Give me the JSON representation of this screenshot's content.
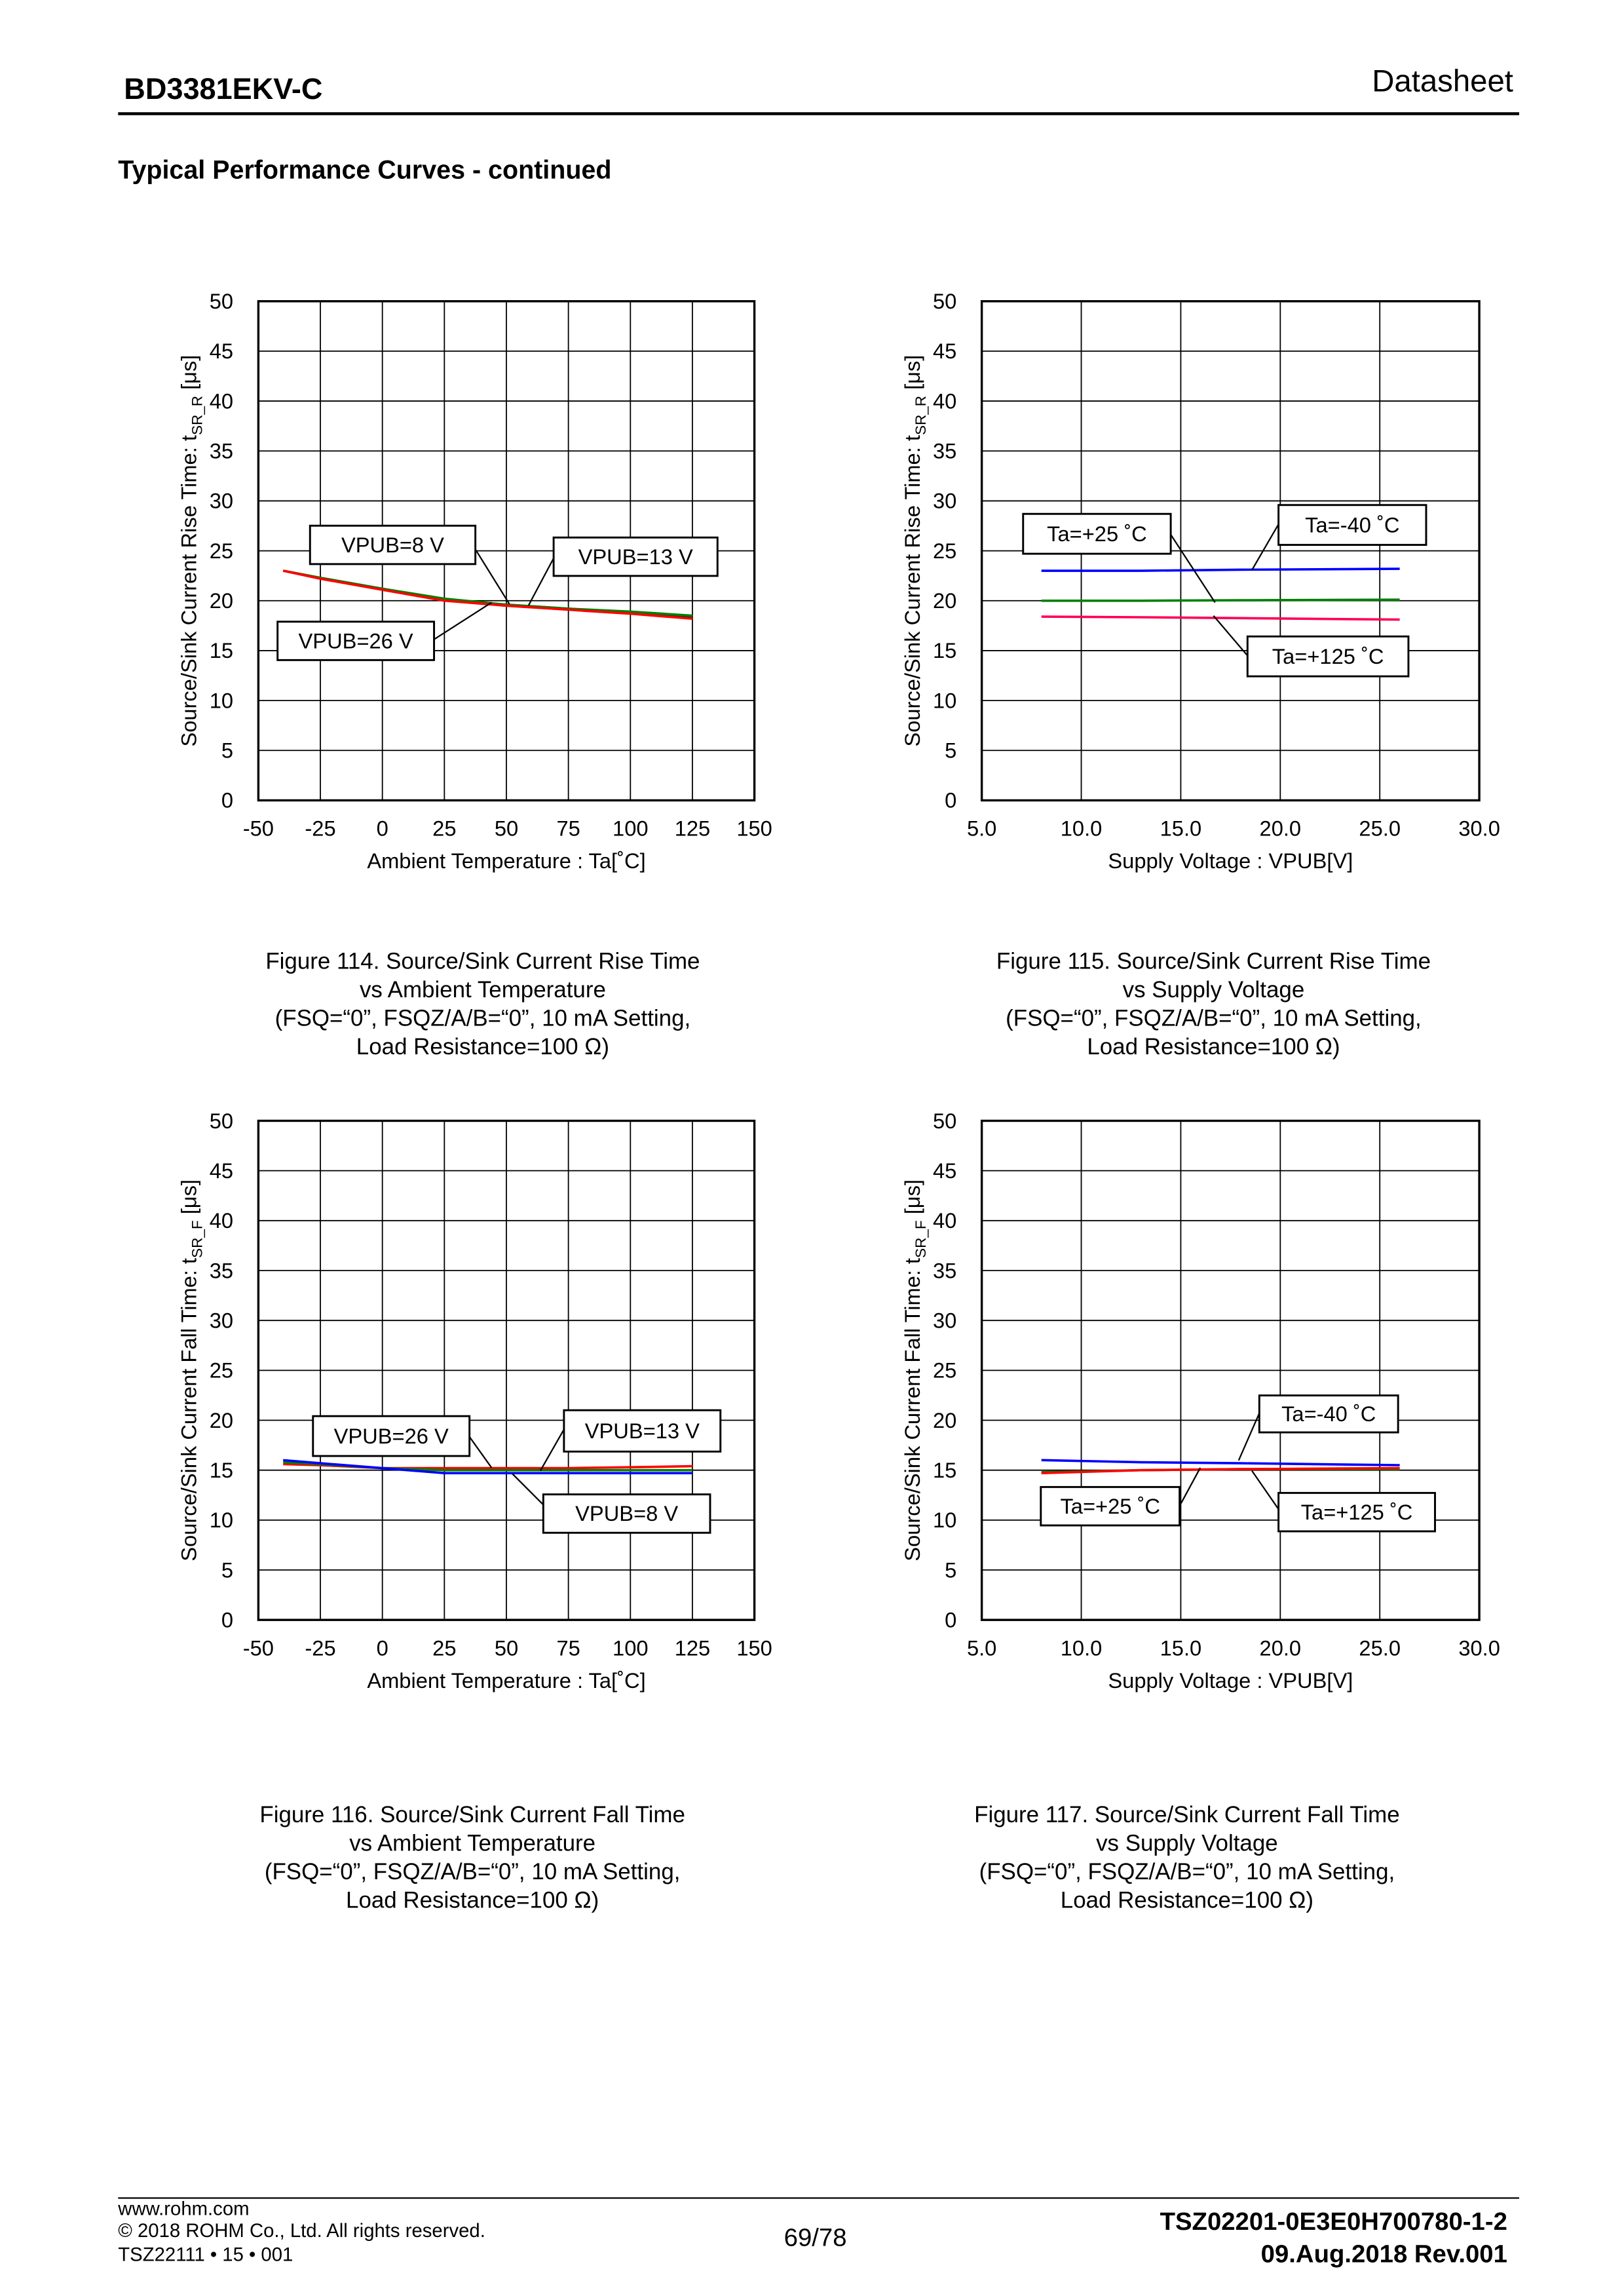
{
  "header": {
    "doc_title": "BD3381EKV-C",
    "doc_type": "Datasheet"
  },
  "section_title": "Typical Performance Curves - continued",
  "footer": {
    "website": "www.rohm.com",
    "copyright": "© 2018 ROHM Co., Ltd. All rights reserved.",
    "form_code": "TSZ22111 • 15 • 001",
    "page": "69/78",
    "doc_number": "TSZ02201-0E3E0H700780-1-2",
    "date_rev": "09.Aug.2018 Rev.001"
  },
  "chart_data": [
    {
      "type": "line",
      "caption": [
        "Figure 114. Source/Sink Current Rise Time",
        "vs Ambient Temperature",
        "(FSQ=“0”, FSQZ/A/B=“0”, 10 mA Setting,",
        "Load Resistance=100 Ω)"
      ],
      "xlabel": "Ambient Temperature : Ta[˚C]",
      "ylabel": {
        "prefix": "Source/Sink Current Rise Time: t",
        "sub": "SR_R",
        "suffix": " [μs]"
      },
      "xlim": [
        -50,
        150
      ],
      "ylim": [
        0,
        50
      ],
      "xticks": [
        "-50",
        "-25",
        "0",
        "25",
        "50",
        "75",
        "100",
        "125",
        "150"
      ],
      "yticks": [
        "0",
        "5",
        "10",
        "15",
        "20",
        "25",
        "30",
        "35",
        "40",
        "45",
        "50"
      ],
      "grid": true,
      "x": [
        -40,
        -25,
        0,
        25,
        50,
        75,
        100,
        125
      ],
      "series": [
        {
          "name": "VPUB=8 V",
          "color": "#222222",
          "values": [
            23.0,
            22.3,
            21.2,
            20.1,
            19.6,
            19.2,
            18.8,
            18.4
          ]
        },
        {
          "name": "VPUB=13 V",
          "color": "#008000",
          "values": [
            23.0,
            22.3,
            21.2,
            20.2,
            19.6,
            19.2,
            18.9,
            18.5
          ]
        },
        {
          "name": "VPUB=26 V",
          "color": "#ff0000",
          "values": [
            23.0,
            22.2,
            21.1,
            20.0,
            19.5,
            19.1,
            18.7,
            18.2
          ]
        }
      ]
    },
    {
      "type": "line",
      "caption": [
        "Figure 115. Source/Sink Current Rise Time",
        "vs Supply Voltage",
        "(FSQ=“0”, FSQZ/A/B=“0”, 10 mA Setting,",
        "Load Resistance=100 Ω)"
      ],
      "xlabel": "Supply Voltage : VPUB[V]",
      "ylabel": {
        "prefix": "Source/Sink Current Rise Time: t",
        "sub": "SR_R",
        "suffix": " [μs]"
      },
      "xlim": [
        5,
        30
      ],
      "ylim": [
        0,
        50
      ],
      "xticks": [
        "5.0",
        "10.0",
        "15.0",
        "20.0",
        "25.0",
        "30.0"
      ],
      "yticks": [
        "0",
        "5",
        "10",
        "15",
        "20",
        "25",
        "30",
        "35",
        "40",
        "45",
        "50"
      ],
      "grid": true,
      "x": [
        8,
        13,
        18,
        26
      ],
      "series": [
        {
          "name": "Ta=+25 ˚C",
          "color": "#008000",
          "values": [
            20.0,
            20.0,
            20.05,
            20.1
          ]
        },
        {
          "name": "Ta=-40 ˚C",
          "color": "#0000ff",
          "values": [
            23.0,
            23.0,
            23.1,
            23.2
          ]
        },
        {
          "name": "Ta=+125 ˚C",
          "color": "#ff0055",
          "values": [
            18.4,
            18.35,
            18.25,
            18.1
          ]
        }
      ]
    },
    {
      "type": "line",
      "caption": [
        "Figure 116. Source/Sink Current Fall Time",
        "vs Ambient Temperature",
        "(FSQ=“0”, FSQZ/A/B=“0”, 10 mA Setting,",
        "Load Resistance=100 Ω)"
      ],
      "xlabel": "Ambient Temperature : Ta[˚C]",
      "ylabel": {
        "prefix": "Source/Sink Current Fall Time: t",
        "sub": "SR_F",
        "suffix": " [μs]"
      },
      "xlim": [
        -50,
        150
      ],
      "ylim": [
        0,
        50
      ],
      "xticks": [
        "-50",
        "-25",
        "0",
        "25",
        "50",
        "75",
        "100",
        "125",
        "150"
      ],
      "yticks": [
        "0",
        "5",
        "10",
        "15",
        "20",
        "25",
        "30",
        "35",
        "40",
        "45",
        "50"
      ],
      "grid": true,
      "x": [
        -40,
        -25,
        0,
        25,
        50,
        75,
        100,
        125
      ],
      "series": [
        {
          "name": "VPUB=26 V",
          "color": "#ff0000",
          "values": [
            15.6,
            15.5,
            15.2,
            15.2,
            15.2,
            15.2,
            15.3,
            15.4
          ]
        },
        {
          "name": "VPUB=13 V",
          "color": "#008000",
          "values": [
            15.8,
            15.6,
            15.2,
            15.0,
            15.0,
            15.0,
            15.0,
            15.0
          ]
        },
        {
          "name": "VPUB=8 V",
          "color": "#0000ff",
          "values": [
            16.0,
            15.7,
            15.2,
            14.7,
            14.7,
            14.7,
            14.7,
            14.7
          ]
        }
      ]
    },
    {
      "type": "line",
      "caption": [
        "Figure 117. Source/Sink Current Fall Time",
        "vs Supply Voltage",
        "(FSQ=“0”, FSQZ/A/B=“0”, 10 mA Setting,",
        "Load Resistance=100 Ω)"
      ],
      "xlabel": "Supply Voltage : VPUB[V]",
      "ylabel": {
        "prefix": "Source/Sink Current Fall Time: t",
        "sub": "SR_F",
        "suffix": " [μs]"
      },
      "xlim": [
        5,
        30
      ],
      "ylim": [
        0,
        50
      ],
      "xticks": [
        "5.0",
        "10.0",
        "15.0",
        "20.0",
        "25.0",
        "30.0"
      ],
      "yticks": [
        "0",
        "5",
        "10",
        "15",
        "20",
        "25",
        "30",
        "35",
        "40",
        "45",
        "50"
      ],
      "grid": true,
      "x": [
        8,
        13,
        18,
        26
      ],
      "series": [
        {
          "name": "Ta=-40 ˚C",
          "color": "#0000ff",
          "values": [
            16.0,
            15.8,
            15.7,
            15.5
          ]
        },
        {
          "name": "Ta=+25 ˚C",
          "color": "#008000",
          "values": [
            14.8,
            15.0,
            15.1,
            15.1
          ]
        },
        {
          "name": "Ta=+125 ˚C",
          "color": "#ff0000",
          "values": [
            14.7,
            15.0,
            15.1,
            15.2
          ]
        }
      ]
    }
  ]
}
